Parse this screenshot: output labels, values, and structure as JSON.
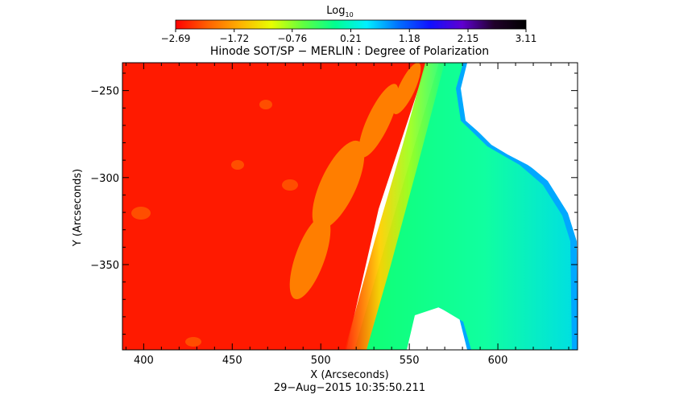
{
  "chart_data": {
    "type": "heatmap",
    "title": "Hinode SOT/SP − MERLIN : Degree of Polarization",
    "xlabel": "X (Arcseconds)",
    "ylabel": "Y (Arcseconds)",
    "timestamp": "29−Aug−2015 10:35:50.211",
    "xlim": [
      388,
      645
    ],
    "ylim": [
      -399,
      -234
    ],
    "x_ticks": [
      400,
      450,
      500,
      550,
      600
    ],
    "x_tick_labels": [
      "400",
      "450",
      "500",
      "550",
      "600"
    ],
    "y_ticks": [
      -250,
      -300,
      -350
    ],
    "y_tick_labels": [
      "−250",
      "−300",
      "−350"
    ],
    "colorbar": {
      "label": "Log",
      "label_subscript": "10",
      "colormap": "rainbow-reversed (red to black)",
      "min": -2.69,
      "max": 3.11,
      "tick_values": [
        -2.69,
        -1.72,
        -0.76,
        0.21,
        1.18,
        2.15,
        3.11
      ],
      "tick_labels": [
        "−2.69",
        "−1.72",
        "−0.76",
        "0.21",
        "1.18",
        "2.15",
        "3.11"
      ],
      "stops": [
        "#ff0000",
        "#ff6000",
        "#ffb000",
        "#e8ff00",
        "#60ff40",
        "#00ff90",
        "#00f0ff",
        "#0070ff",
        "#1010ff",
        "#6000d0",
        "#20002a",
        "#000000"
      ]
    },
    "regions": [
      {
        "name": "disk interior",
        "approx_value": -2.5,
        "color": "#ff1a00"
      },
      {
        "name": "limb transition",
        "approx_value": -0.3,
        "color": "#ffee00"
      },
      {
        "name": "off-limb",
        "approx_value": 0.3,
        "color": "#20ff90"
      },
      {
        "name": "outer off-limb edge",
        "approx_value": 1.5,
        "color": "#00a0ff"
      },
      {
        "name": "no data",
        "approx_value": null,
        "color": "#ffffff"
      }
    ]
  }
}
